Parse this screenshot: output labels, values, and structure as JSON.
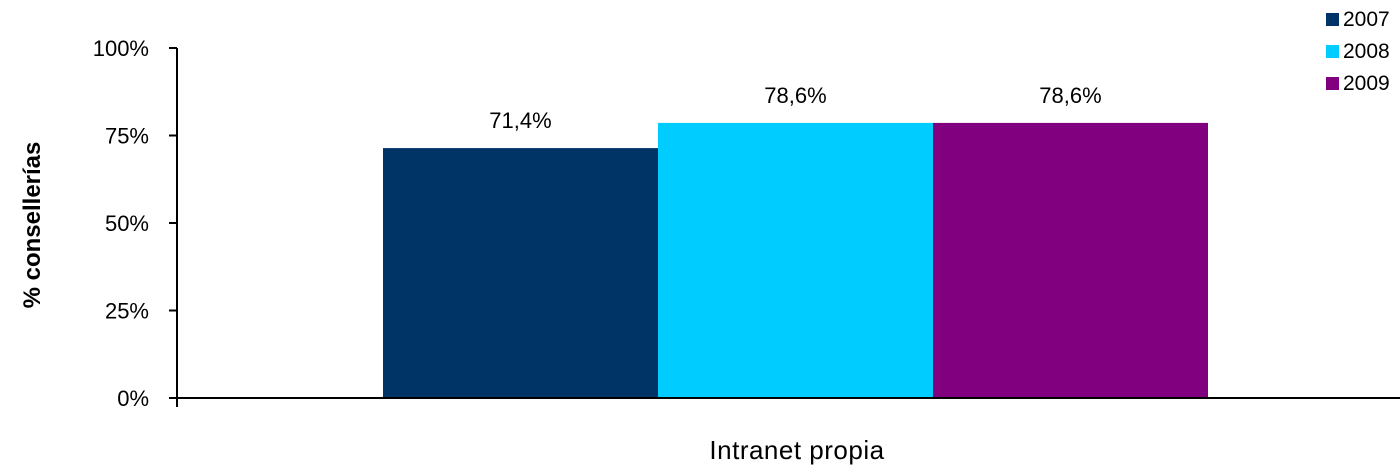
{
  "chart_data": {
    "type": "bar",
    "categories": [
      "Intranet propia"
    ],
    "series": [
      {
        "name": "2007",
        "values": [
          71.4
        ],
        "label": "71,4%",
        "color": "#003366"
      },
      {
        "name": "2008",
        "values": [
          78.6
        ],
        "label": "78,6%",
        "color": "#00CCFF"
      },
      {
        "name": "2009",
        "values": [
          78.6
        ],
        "label": "78,6%",
        "color": "#800080"
      }
    ],
    "ylabel": "% consellerías",
    "xlabel": "",
    "ylim": [
      0,
      100
    ],
    "yticks": [
      0,
      25,
      50,
      75,
      100
    ],
    "ytick_labels": [
      "0%",
      "25%",
      "50%",
      "75%",
      "100%"
    ],
    "grid": false,
    "legend_position": "top-right"
  }
}
